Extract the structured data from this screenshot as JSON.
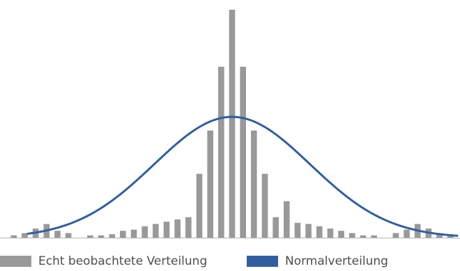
{
  "chart_data": {
    "type": "bar",
    "title": "",
    "xlabel": "",
    "ylabel": "",
    "ylim": [
      0,
      100
    ],
    "grid": false,
    "legend_position": "bottom",
    "colors": {
      "bars": "#999999",
      "curve": "#2f5fa0",
      "axis": "#b3b3b3"
    },
    "bars": [
      {
        "name": "Echt beobachtete Verteilung",
        "values": [
          1,
          2,
          4,
          6,
          3,
          2,
          0,
          1,
          1,
          1.5,
          3,
          3.5,
          5,
          6,
          7,
          8,
          9,
          28,
          47,
          75,
          100,
          75,
          47,
          28,
          9,
          16,
          6.5,
          6,
          5,
          4,
          3,
          2,
          1,
          1,
          0,
          2,
          3.5,
          6,
          4,
          2,
          1
        ]
      }
    ],
    "curve": {
      "name": "Normalverteilung",
      "peak": 53
    }
  },
  "legend": {
    "observed_label": "Echt beobachtete Verteilung",
    "normal_label": "Normalverteilung"
  }
}
